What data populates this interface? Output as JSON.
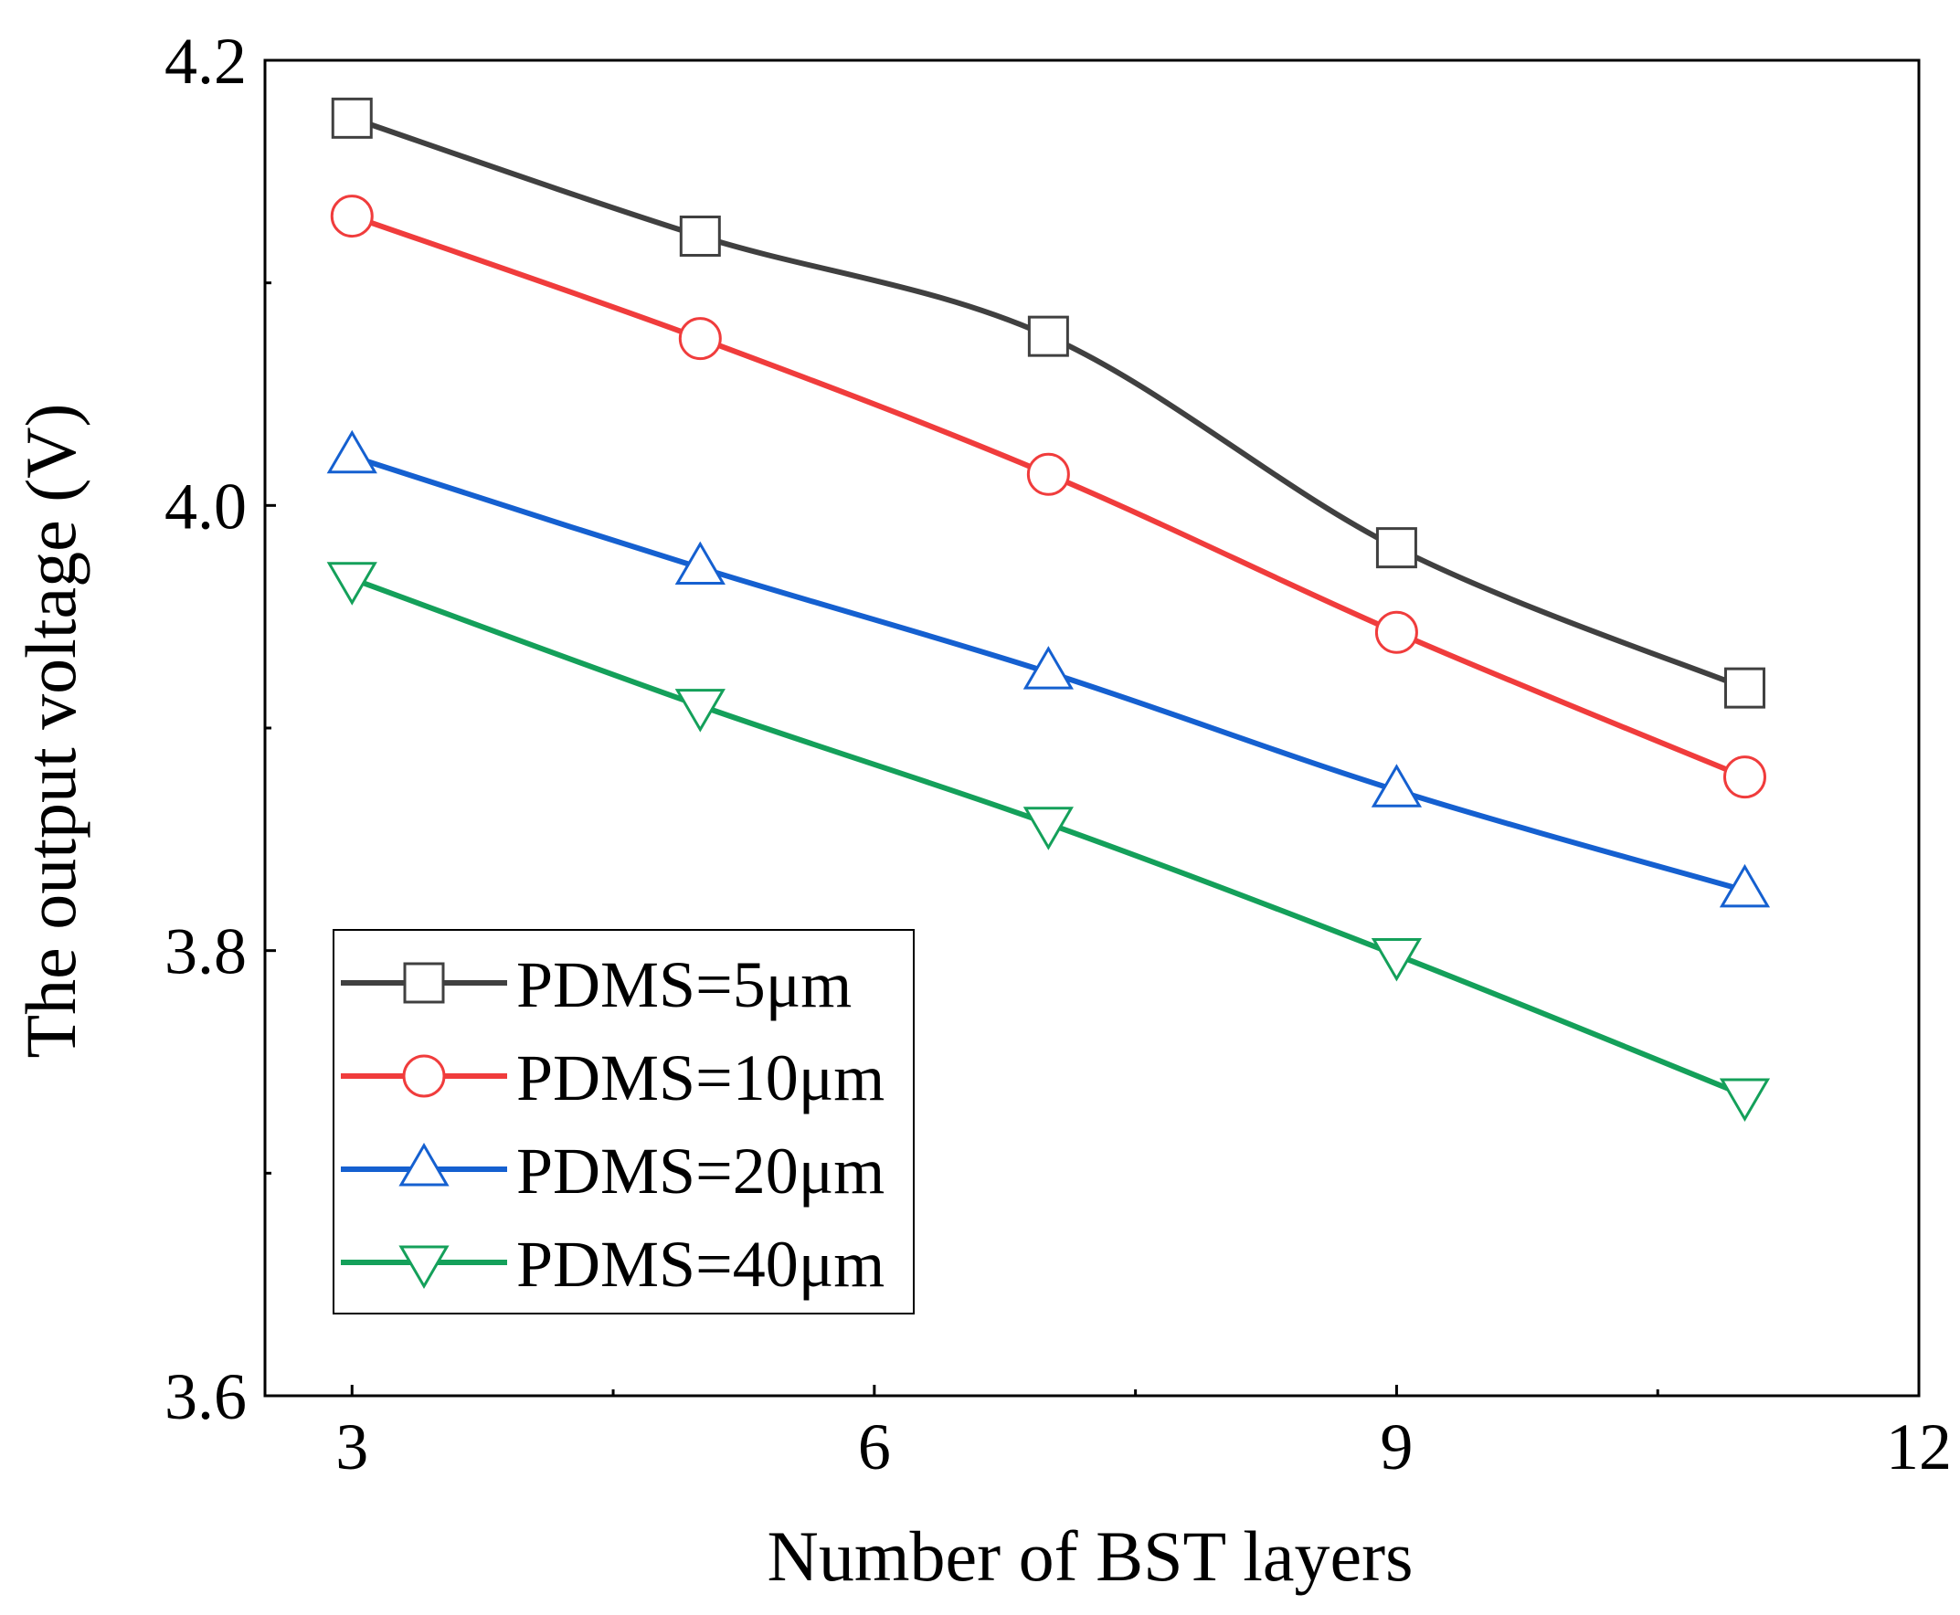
{
  "chart_data": {
    "type": "line",
    "title": "",
    "xlabel": "Number of BST layers",
    "ylabel": "The output voltage (V)",
    "xlim": [
      2.5,
      12
    ],
    "ylim": [
      3.6,
      4.2
    ],
    "xticks": [
      3,
      6,
      9,
      12
    ],
    "xtick_labels": [
      "3",
      "6",
      "9",
      "12"
    ],
    "x_minor_ticks": [
      4.5,
      7.5,
      10.5
    ],
    "yticks": [
      3.6,
      3.8,
      4.0,
      4.2
    ],
    "ytick_labels": [
      "3.6",
      "3.8",
      "4.0",
      "4.2"
    ],
    "y_minor_ticks": [
      3.7,
      3.9,
      4.1
    ],
    "grid": false,
    "legend_position": "bottom-left",
    "x": [
      3,
      5,
      7,
      9,
      11
    ],
    "series": [
      {
        "name": "PDMS=5μm",
        "marker": "square",
        "color": "#404040",
        "values": [
          4.174,
          4.121,
          4.076,
          3.981,
          3.918
        ]
      },
      {
        "name": "PDMS=10μm",
        "marker": "circle",
        "color": "#f03c3c",
        "values": [
          4.13,
          4.075,
          4.014,
          3.943,
          3.878
        ]
      },
      {
        "name": "PDMS=20μm",
        "marker": "triangle-up",
        "color": "#1560d0",
        "values": [
          4.022,
          3.972,
          3.925,
          3.872,
          3.827
        ]
      },
      {
        "name": "PDMS=40μm",
        "marker": "triangle-down",
        "color": "#14a05a",
        "values": [
          3.967,
          3.91,
          3.857,
          3.798,
          3.735
        ]
      }
    ]
  }
}
